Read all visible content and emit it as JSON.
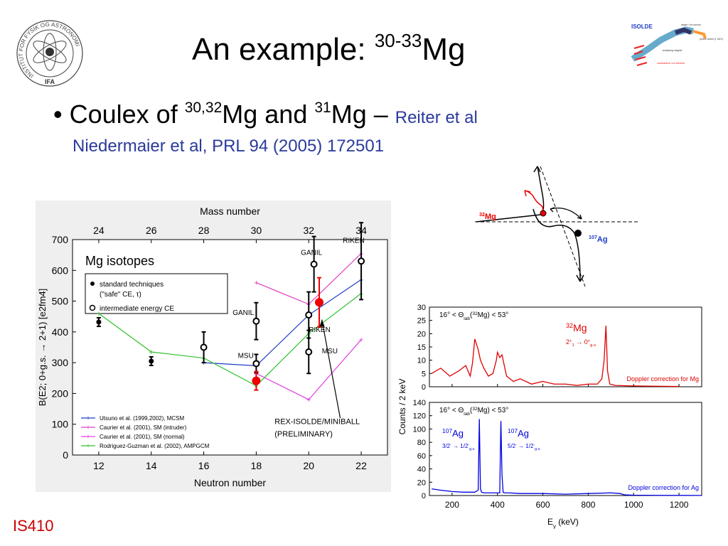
{
  "slide": {
    "title_main": "An example: ",
    "title_sup": "30-33",
    "title_elem": "Mg",
    "bullet_text1": "Coulex of ",
    "bullet_sup1": "30,32",
    "bullet_text2": "Mg and ",
    "bullet_sup2": "31",
    "bullet_text3": "Mg – ",
    "citation1": "Reiter et al",
    "citation2": "Niedermaier et al, PRL 94 (2005) 172501",
    "footer": "IS410"
  },
  "logo": {
    "ring_text": "INSTITUT FOR FYSIK OG ASTRONOMI",
    "bottom_text": "IFA"
  },
  "isolde": {
    "title": "ISOLDE",
    "label1": "target / ion source",
    "label2": "proton beam (1 GeV)",
    "label3": "analysing magnet",
    "label4": "radioactive ion beams"
  },
  "kinematics": {
    "projectile": "32Mg",
    "target": "107Ag"
  },
  "chart_data": [
    {
      "type": "scatter",
      "title": "Mg isotopes",
      "xlabel": "Neutron number",
      "ylabel": "B(E2; 0+g.s. → 2+1) [e2fm4]",
      "top_axis_label": "Mass number",
      "xlim": [
        11,
        23
      ],
      "ylim": [
        0,
        700
      ],
      "x_ticks": [
        12,
        14,
        16,
        18,
        20,
        22
      ],
      "y_ticks": [
        0,
        100,
        200,
        300,
        400,
        500,
        600,
        700
      ],
      "top_ticks": [
        24,
        26,
        28,
        30,
        32,
        34
      ],
      "legend_box": [
        "standard techniques",
        "(\"safe\" CE, τ)",
        "intermediate energy CE"
      ],
      "legend_theory": [
        "Utsuno et al. (1999,2002), MCSM",
        "Caurier et al. (2001),  SM (intruder)",
        "Caurier et al. (2001),  SM (normal)",
        "Rodriguez-Guzman et al. (2002), AMPGCM"
      ],
      "series": [
        {
          "name": "standard techniques",
          "color": "#000000",
          "points": [
            [
              12,
              432,
              14
            ],
            [
              14,
              305,
              14
            ]
          ]
        },
        {
          "name": "intermediate energy CE",
          "color": "#000000",
          "points": [
            [
              16,
              350,
              50
            ],
            [
              18,
              435,
              60
            ],
            [
              18,
              297,
              30
            ],
            [
              20,
              455,
              75
            ],
            [
              20,
              335,
              70
            ],
            [
              20.2,
              620,
              90
            ],
            [
              22,
              630,
              125
            ]
          ]
        },
        {
          "name": "REX-ISOLDE/MINIBALL (PRELIMINARY)",
          "color": "#ee0000",
          "points": [
            [
              18,
              241,
              30
            ],
            [
              20.4,
              496,
              80
            ]
          ]
        }
      ],
      "theory": [
        {
          "name": "Utsuno",
          "color": "#1e3cc8",
          "x": [
            16,
            18,
            20,
            22
          ],
          "y": [
            300,
            290,
            455,
            570
          ]
        },
        {
          "name": "Caurier intruder",
          "color": "#e040c0",
          "x": [
            18,
            20,
            22
          ],
          "y": [
            560,
            490,
            655
          ]
        },
        {
          "name": "Caurier normal",
          "color": "#e040e0",
          "x": [
            18,
            20,
            22
          ],
          "y": [
            265,
            180,
            375
          ]
        },
        {
          "name": "Rodriguez-Guzman",
          "color": "#30c030",
          "x": [
            12,
            14,
            16,
            18,
            20,
            22
          ],
          "y": [
            460,
            335,
            315,
            225,
            395,
            525
          ]
        }
      ],
      "annotations": [
        "GANIL",
        "GANIL",
        "RIKEN",
        "RIKEN",
        "MSU",
        "MSU",
        "REX-ISOLDE/MINIBALL",
        "(PRELIMINARY)"
      ]
    },
    {
      "type": "line",
      "xlabel": "Eγ (keV)",
      "ylabel": "Counts / 2 keV",
      "xlim": [
        100,
        1300
      ],
      "x_ticks": [
        200,
        400,
        600,
        800,
        1000,
        1200
      ],
      "panels": [
        {
          "name": "Mg",
          "color": "#e00000",
          "ylim": [
            0,
            30
          ],
          "y_ticks": [
            0,
            5,
            10,
            15,
            20,
            25,
            30
          ],
          "angle_text": "16° < Θlab(32Mg) < 53°",
          "nucleus": "32Mg",
          "transition": "2+1 → 0+g.s.",
          "footer": "Doppler correction for Mg",
          "x": [
            110,
            150,
            190,
            230,
            260,
            280,
            290,
            300,
            315,
            325,
            340,
            360,
            380,
            395,
            400,
            410,
            420,
            440,
            470,
            500,
            550,
            600,
            650,
            700,
            750,
            800,
            840,
            860,
            870,
            878,
            885,
            895,
            920,
            1000,
            1100,
            1200
          ],
          "y": [
            5,
            7,
            4,
            6,
            8,
            4,
            9,
            18,
            14,
            10,
            7,
            4,
            5,
            10,
            13,
            11,
            12,
            4,
            2,
            3,
            1,
            2,
            1,
            1,
            0.5,
            1,
            1,
            3,
            10,
            23,
            6,
            1,
            0.5,
            0.3,
            0.2,
            0.1
          ]
        },
        {
          "name": "Ag",
          "color": "#0000e0",
          "ylim": [
            0,
            140
          ],
          "y_ticks": [
            0,
            20,
            40,
            60,
            80,
            100,
            120,
            140
          ],
          "angle_text": "16° < Θlab(32Mg) < 53°",
          "footer": "Doppler correction for Ag",
          "peaks": [
            {
              "nucleus": "107Ag",
              "transition": "3/2- → 1/2-g.s."
            },
            {
              "nucleus": "107Ag",
              "transition": "5/2- → 1/2-g.s."
            }
          ],
          "x": [
            110,
            150,
            200,
            250,
            300,
            315,
            320,
            325,
            330,
            340,
            380,
            410,
            415,
            420,
            425,
            430,
            450,
            500,
            600,
            700,
            800,
            900,
            940,
            960,
            1000,
            1100,
            1200,
            1300
          ],
          "y": [
            10,
            8,
            6,
            5,
            5,
            8,
            115,
            10,
            5,
            4,
            4,
            4,
            112,
            30,
            5,
            4,
            4,
            3,
            3,
            2,
            3,
            4,
            3,
            1,
            0.5,
            0.3,
            0.2,
            0.1
          ]
        }
      ]
    }
  ]
}
